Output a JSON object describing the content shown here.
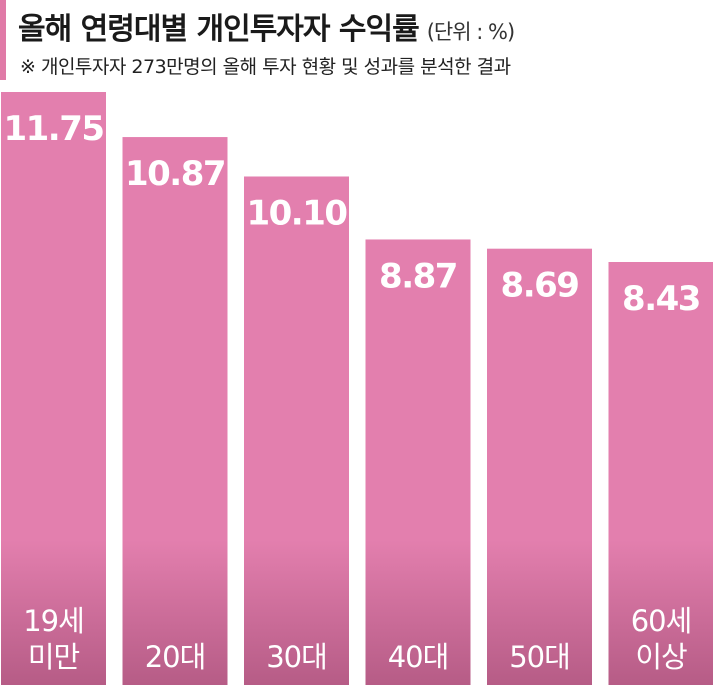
{
  "header": {
    "title": "올해 연령대별 개인투자자 수익률",
    "unit": "(단위 : %)",
    "note": "※ 개인투자자 273만명의 올해 투자 현황 및 성과를 분석한 결과"
  },
  "colors": {
    "bar": "#e37fae",
    "bar_bottom": "#b65c86",
    "accent": "#e07aa7"
  },
  "chart_data": {
    "type": "bar",
    "title": "올해 연령대별 개인투자자 수익률",
    "unit": "%",
    "categories": [
      [
        "19세",
        "미만"
      ],
      [
        "20대"
      ],
      [
        "30대"
      ],
      [
        "40대"
      ],
      [
        "50대"
      ],
      [
        "60세",
        "이상"
      ]
    ],
    "values": [
      11.75,
      10.87,
      10.1,
      8.87,
      8.69,
      8.43
    ],
    "value_labels": [
      "11.75",
      "10.87",
      "10.10",
      "8.87",
      "8.69",
      "8.43"
    ]
  }
}
